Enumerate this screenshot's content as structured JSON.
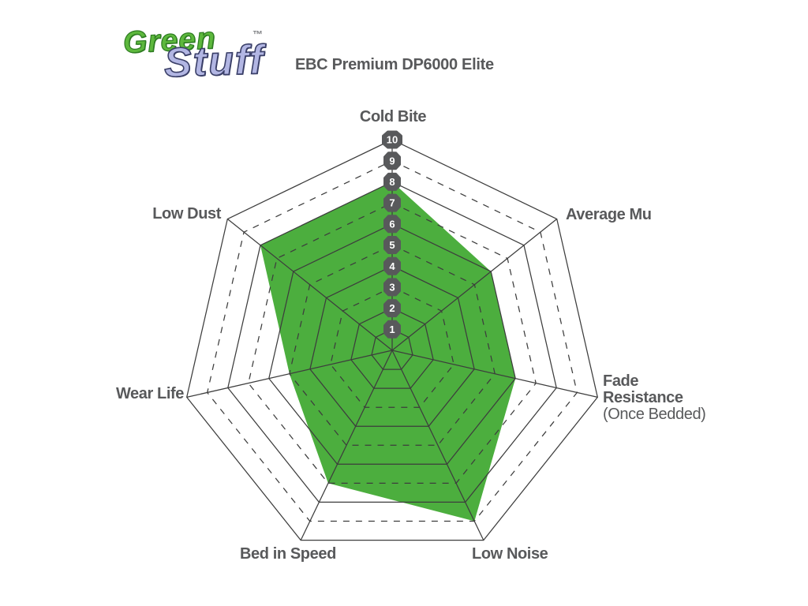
{
  "logo": {
    "word1": "Green",
    "word2": "Stuff",
    "tm": "™"
  },
  "title": "EBC Premium DP6000 Elite",
  "colors": {
    "fill_green": "#4cae3e",
    "grid": "#3d3d3d",
    "badge": "#58595b",
    "badge_text": "#ffffff",
    "label_text": "#58595b",
    "logo_green": "#5db83d",
    "logo_lilac": "#b2b6e3"
  },
  "chart_data": {
    "type": "radar",
    "title": "EBC Premium DP6000 Elite",
    "axes": [
      "Cold Bite",
      "Average Mu",
      "Fade Resistance (Once Bedded)",
      "Low Noise",
      "Bed in Speed",
      "Wear Life",
      "Low Dust"
    ],
    "values": [
      8,
      6,
      6,
      9,
      7,
      5,
      8
    ],
    "scale_min": 1,
    "scale_max": 10,
    "scale_badges": [
      10,
      9,
      8,
      7,
      6,
      5,
      4,
      3,
      2,
      1
    ],
    "grid_rings": 10,
    "ring_style": "even rings solid, odd rings dashed, ring 1 solid",
    "legend": "none",
    "axis_labels": {
      "cold_bite": "Cold Bite",
      "average_mu": "Average Mu",
      "fade_line1": "Fade",
      "fade_line2": "Resistance",
      "fade_sub": "(Once Bedded)",
      "low_noise": "Low Noise",
      "bed_in_speed": "Bed in Speed",
      "wear_life": "Wear Life",
      "low_dust": "Low Dust"
    }
  }
}
